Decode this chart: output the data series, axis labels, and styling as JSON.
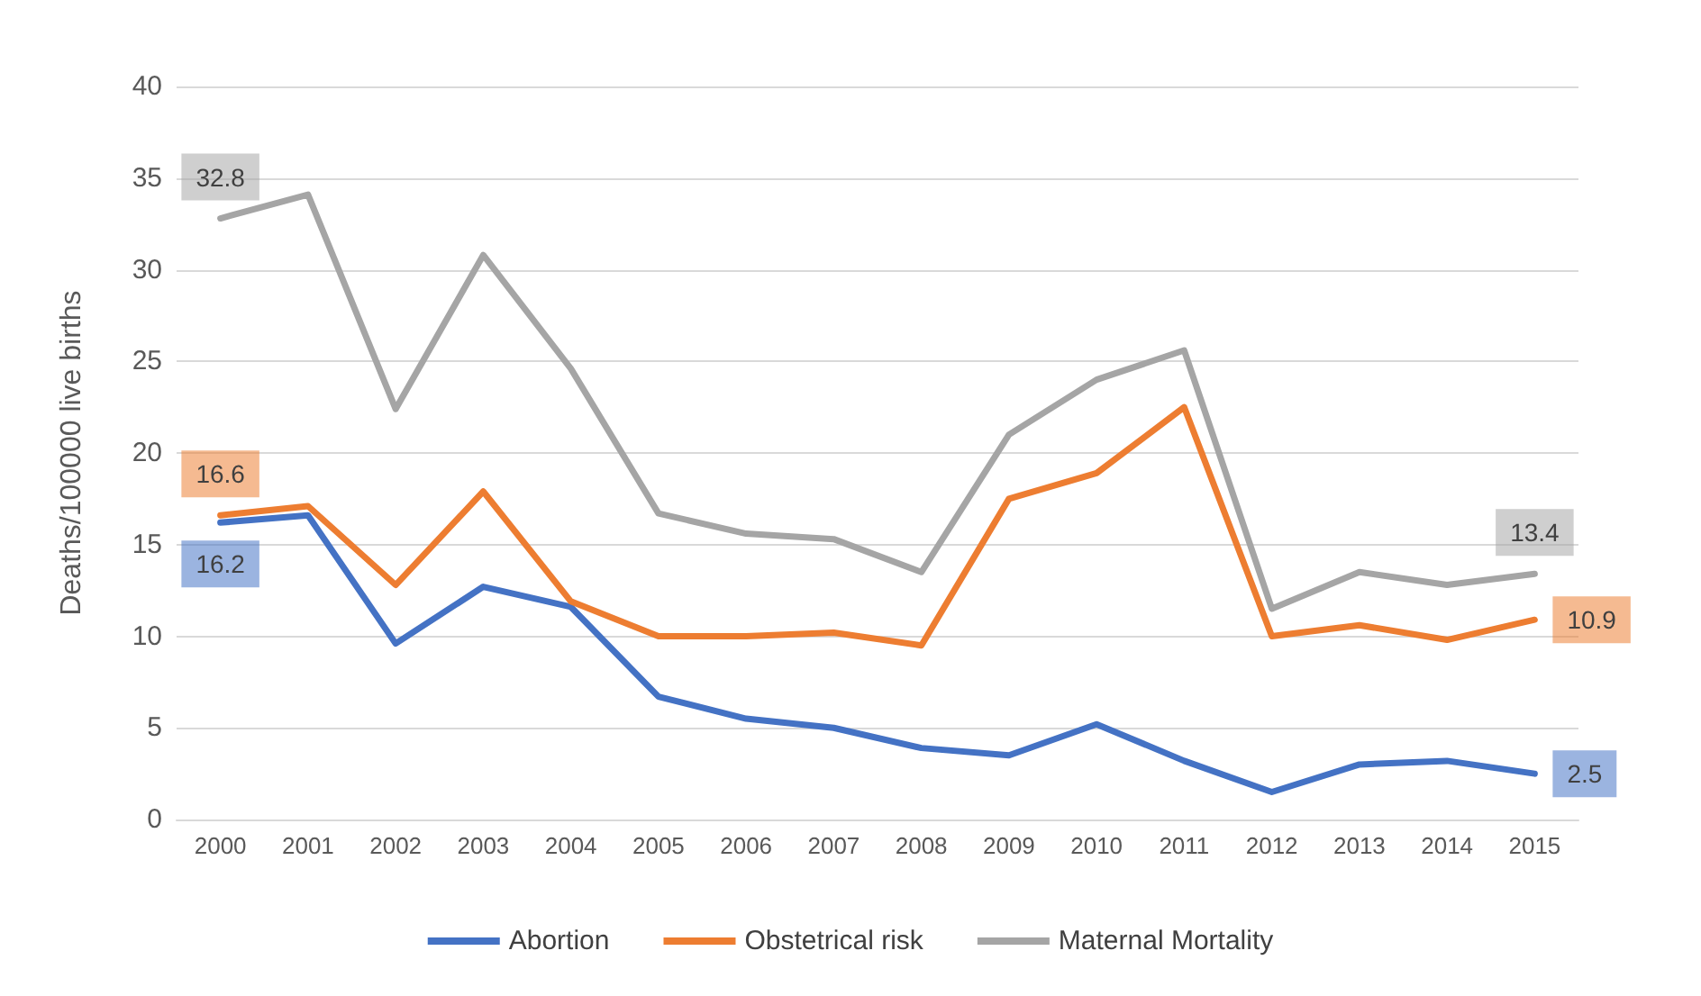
{
  "chart_data": {
    "type": "line",
    "ylabel": "Deaths/100000 live births",
    "categories": [
      "2000",
      "2001",
      "2002",
      "2003",
      "2004",
      "2005",
      "2006",
      "2007",
      "2008",
      "2009",
      "2010",
      "2011",
      "2012",
      "2013",
      "2014",
      "2015"
    ],
    "series": [
      {
        "name": "Abortion",
        "color": "#4472c4",
        "values": [
          16.2,
          16.6,
          9.6,
          12.7,
          11.6,
          6.7,
          5.5,
          5.0,
          3.9,
          3.5,
          5.2,
          3.2,
          1.5,
          3.0,
          3.2,
          2.5
        ],
        "value_labels": [
          "16.2",
          null,
          null,
          null,
          null,
          null,
          null,
          null,
          null,
          null,
          null,
          null,
          null,
          null,
          null,
          "2.5"
        ]
      },
      {
        "name": "Obstetrical risk",
        "color": "#ed7d31",
        "values": [
          16.6,
          17.1,
          12.8,
          17.9,
          11.9,
          10.0,
          10.0,
          10.2,
          9.5,
          17.5,
          18.9,
          22.5,
          10.0,
          10.6,
          9.8,
          10.9
        ],
        "value_labels": [
          "16.6",
          null,
          null,
          null,
          null,
          null,
          null,
          null,
          null,
          null,
          null,
          null,
          null,
          null,
          null,
          "10.9"
        ]
      },
      {
        "name": "Maternal Mortality",
        "color": "#a5a5a5",
        "values": [
          32.8,
          34.1,
          22.4,
          30.8,
          24.6,
          16.7,
          15.6,
          15.3,
          13.5,
          21.0,
          24.0,
          25.6,
          11.5,
          13.5,
          12.8,
          13.4
        ],
        "value_labels": [
          "32.8",
          null,
          null,
          null,
          null,
          null,
          null,
          null,
          null,
          null,
          null,
          null,
          null,
          null,
          null,
          "13.4"
        ]
      }
    ],
    "ylim": [
      0,
      40
    ],
    "yticks": [
      0,
      5,
      10,
      15,
      20,
      25,
      30,
      35,
      40
    ],
    "grid": "y",
    "legend": "bottom",
    "line_style": "solid"
  }
}
